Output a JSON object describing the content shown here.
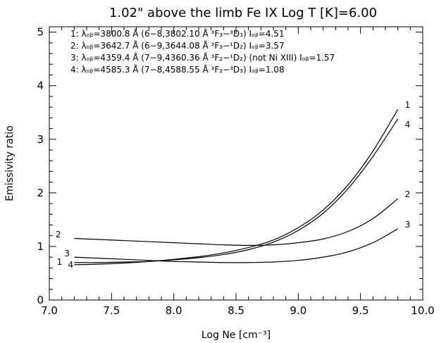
{
  "chart_data": {
    "type": "line",
    "title": "1.02\" above the limb   Fe IX   Log T [K]=6.00",
    "xlabel": "Log Ne [cm⁻³]",
    "ylabel": "Emissivity ratio",
    "xlim": [
      7.0,
      10.0
    ],
    "ylim": [
      0,
      5.1
    ],
    "xticks": [
      7.0,
      7.5,
      8.0,
      8.5,
      9.0,
      9.5,
      10.0
    ],
    "xtick_labels": [
      "7.0",
      "7.5",
      "8.0",
      "8.5",
      "9.0",
      "9.5",
      "10.0"
    ],
    "yticks": [
      0,
      1,
      2,
      3,
      4,
      5
    ],
    "ytick_labels": [
      "0",
      "1",
      "2",
      "3",
      "4",
      "5"
    ],
    "legend_position": "top-left",
    "legend": [
      "1: λₒᵦ=3800.8 Å (6−8,3802.10 Å ³F₃−³D₃)   Iₒᵦ=4.51",
      "2: λₒᵦ=3642.7 Å (6−9,3644.08 Å ³F₃−¹D₂)   Iₒᵦ=3.57",
      "3: λₒᵦ=4359.4 Å (7−9,4360.36 Å ³F₂−¹D₂) (not Ni XIII) Iₒᵦ=1.57",
      "4: λₒᵦ=4585.3 Å (7−8,4588.55 Å ³F₂−³D₃)   Iₒᵦ=1.08"
    ],
    "series": [
      {
        "label": "1",
        "x": [
          7.2,
          7.4,
          7.6,
          7.8,
          8.0,
          8.2,
          8.4,
          8.6,
          8.8,
          9.0,
          9.2,
          9.4,
          9.6,
          9.8
        ],
        "y": [
          0.66,
          0.67,
          0.69,
          0.72,
          0.76,
          0.81,
          0.88,
          0.98,
          1.12,
          1.35,
          1.68,
          2.15,
          2.78,
          3.56
        ]
      },
      {
        "label": "2",
        "x": [
          7.2,
          7.4,
          7.6,
          7.8,
          8.0,
          8.2,
          8.4,
          8.6,
          8.8,
          9.0,
          9.2,
          9.4,
          9.6,
          9.8
        ],
        "y": [
          1.15,
          1.13,
          1.11,
          1.09,
          1.07,
          1.05,
          1.03,
          1.02,
          1.03,
          1.07,
          1.14,
          1.28,
          1.52,
          1.89
        ]
      },
      {
        "label": "3",
        "x": [
          7.2,
          7.4,
          7.6,
          7.8,
          8.0,
          8.2,
          8.4,
          8.6,
          8.8,
          9.0,
          9.2,
          9.4,
          9.6,
          9.8
        ],
        "y": [
          0.8,
          0.78,
          0.76,
          0.74,
          0.72,
          0.71,
          0.7,
          0.7,
          0.71,
          0.74,
          0.8,
          0.9,
          1.07,
          1.33
        ]
      },
      {
        "label": "4",
        "x": [
          7.2,
          7.4,
          7.6,
          7.8,
          8.0,
          8.2,
          8.4,
          8.6,
          8.8,
          9.0,
          9.2,
          9.4,
          9.6,
          9.8
        ],
        "y": [
          0.7,
          0.7,
          0.71,
          0.72,
          0.75,
          0.79,
          0.85,
          0.94,
          1.08,
          1.3,
          1.62,
          2.08,
          2.68,
          3.38
        ]
      }
    ],
    "left_labels": [
      {
        "text": "2",
        "x": 7.05,
        "y": 1.22
      },
      {
        "text": "3",
        "x": 7.12,
        "y": 0.87
      },
      {
        "text": "1",
        "x": 7.06,
        "y": 0.71
      },
      {
        "text": "4",
        "x": 7.15,
        "y": 0.66
      }
    ]
  }
}
